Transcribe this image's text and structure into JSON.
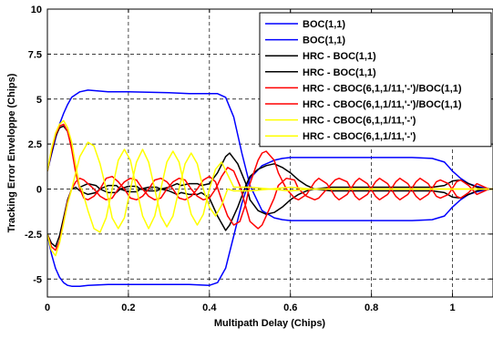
{
  "chart_data": {
    "type": "line",
    "title": "",
    "xlabel": "Multipath Delay (Chips)",
    "ylabel": "Tracking Error Enveloppe (Chips)",
    "xlim": [
      0,
      1.1
    ],
    "ylim": [
      -6,
      10
    ],
    "xticks": [
      0,
      0.2,
      0.4,
      0.6,
      0.8,
      1
    ],
    "xtick_labels": [
      "0",
      "0.2",
      "0.4",
      "0.6",
      "0.8",
      "1"
    ],
    "yticks": [
      -5,
      -2.5,
      0,
      2.5,
      5,
      7.5,
      10
    ],
    "ytick_labels": [
      "-5",
      "-2.5",
      "0",
      "2.5",
      "5",
      "7.5",
      "10"
    ],
    "grid": true,
    "legend_position": "top-right",
    "legend": [
      "BOC(1,1)",
      "BOC(1,1)",
      "HRC - BOC(1,1)",
      "HRC - BOC(1,1)",
      "HRC - CBOC(6,1,1/11,'-')/BOC(1,1)",
      "HRC - CBOC(6,1,1/11,'-')/BOC(1,1)",
      "HRC - CBOC(6,1,1/11,'-')",
      "HRC - CBOC(6,1,1/11,'-')"
    ],
    "series": [
      {
        "color": "#0000ff",
        "x": [
          0,
          0.01,
          0.02,
          0.03,
          0.04,
          0.05,
          0.06,
          0.08,
          0.1,
          0.15,
          0.2,
          0.3,
          0.35,
          0.4,
          0.42,
          0.44,
          0.46,
          0.48,
          0.5,
          0.53,
          0.56,
          0.58,
          0.6,
          0.65,
          0.7,
          0.8,
          0.9,
          0.95,
          0.98,
          1.0,
          1.02,
          1.04,
          1.06,
          1.08,
          1.1
        ],
        "y": [
          1.0,
          1.9,
          2.8,
          3.6,
          4.2,
          4.7,
          5.1,
          5.4,
          5.5,
          5.4,
          5.4,
          5.35,
          5.3,
          5.3,
          5.3,
          5.1,
          4.0,
          2.0,
          0.2,
          -1.2,
          -1.6,
          -1.7,
          -1.75,
          -1.75,
          -1.75,
          -1.75,
          -1.75,
          -1.7,
          -1.5,
          -1.0,
          -0.6,
          -0.3,
          -0.15,
          -0.05,
          0
        ]
      },
      {
        "color": "#0000ff",
        "x": [
          0,
          0.01,
          0.02,
          0.03,
          0.04,
          0.05,
          0.06,
          0.08,
          0.1,
          0.15,
          0.2,
          0.3,
          0.35,
          0.4,
          0.42,
          0.44,
          0.46,
          0.48,
          0.5,
          0.53,
          0.56,
          0.58,
          0.6,
          0.65,
          0.7,
          0.8,
          0.9,
          0.95,
          0.98,
          1.0,
          1.02,
          1.04,
          1.06,
          1.08,
          1.1
        ],
        "y": [
          -2.5,
          -3.6,
          -4.4,
          -4.9,
          -5.2,
          -5.35,
          -5.4,
          -5.4,
          -5.35,
          -5.3,
          -5.3,
          -5.3,
          -5.3,
          -5.35,
          -5.2,
          -4.4,
          -2.6,
          -0.8,
          0.6,
          1.3,
          1.6,
          1.7,
          1.75,
          1.75,
          1.75,
          1.75,
          1.75,
          1.7,
          1.5,
          1.0,
          0.6,
          0.3,
          0.15,
          0.05,
          0
        ]
      },
      {
        "color": "#000000",
        "x": [
          0,
          0.01,
          0.02,
          0.03,
          0.04,
          0.05,
          0.06,
          0.07,
          0.08,
          0.1,
          0.12,
          0.13,
          0.15,
          0.17,
          0.18,
          0.2,
          0.22,
          0.23,
          0.25,
          0.27,
          0.28,
          0.3,
          0.32,
          0.33,
          0.35,
          0.37,
          0.38,
          0.4,
          0.42,
          0.44,
          0.45,
          0.47,
          0.49,
          0.5,
          0.52,
          0.54,
          0.56,
          0.58,
          0.6,
          0.62,
          0.64,
          0.66,
          0.7,
          0.75,
          0.8,
          0.85,
          0.9,
          0.95,
          0.98,
          1.0,
          1.02,
          1.04,
          1.06,
          1.08,
          1.1
        ],
        "y": [
          1.0,
          2.0,
          2.9,
          3.4,
          3.5,
          3.2,
          2.3,
          1.0,
          0.1,
          0.3,
          0.2,
          0,
          0.2,
          0.2,
          0,
          0.15,
          0.15,
          0,
          0.1,
          0.1,
          0,
          0.1,
          0.3,
          0.2,
          0.3,
          0.3,
          0.2,
          0.3,
          0.9,
          1.8,
          2.0,
          1.4,
          0.3,
          -0.6,
          -1.2,
          -1.4,
          -1.3,
          -1.0,
          -0.6,
          -0.3,
          -0.1,
          0,
          0.1,
          0.1,
          0.1,
          0.1,
          0.1,
          0.1,
          0.2,
          0.45,
          0.5,
          0.3,
          0.1,
          0,
          0
        ]
      },
      {
        "color": "#000000",
        "x": [
          0,
          0.01,
          0.02,
          0.03,
          0.04,
          0.05,
          0.06,
          0.07,
          0.08,
          0.1,
          0.12,
          0.13,
          0.15,
          0.17,
          0.18,
          0.2,
          0.22,
          0.23,
          0.25,
          0.27,
          0.28,
          0.3,
          0.32,
          0.33,
          0.35,
          0.37,
          0.38,
          0.4,
          0.42,
          0.44,
          0.45,
          0.47,
          0.49,
          0.5,
          0.52,
          0.54,
          0.56,
          0.58,
          0.6,
          0.62,
          0.64,
          0.66,
          0.7,
          0.75,
          0.8,
          0.85,
          0.9,
          0.95,
          0.98,
          1.0,
          1.02,
          1.04,
          1.06,
          1.08,
          1.1
        ],
        "y": [
          -2.5,
          -3.0,
          -3.2,
          -2.6,
          -1.6,
          -0.6,
          0,
          0.1,
          -0.1,
          -0.3,
          -0.2,
          0,
          -0.2,
          -0.2,
          0,
          -0.15,
          -0.15,
          0,
          -0.1,
          -0.1,
          0,
          -0.1,
          -0.3,
          -0.2,
          -0.3,
          -0.3,
          -0.2,
          -0.5,
          -1.5,
          -2.3,
          -2.0,
          -1.0,
          0.2,
          0.7,
          1.1,
          1.3,
          1.4,
          1.2,
          0.9,
          0.5,
          0.2,
          0,
          -0.1,
          -0.1,
          -0.1,
          -0.1,
          -0.1,
          -0.1,
          -0.2,
          -0.45,
          -0.5,
          -0.3,
          -0.1,
          0,
          0
        ]
      },
      {
        "color": "#ff0000",
        "x": [
          0,
          0.01,
          0.02,
          0.03,
          0.04,
          0.05,
          0.06,
          0.07,
          0.08,
          0.09,
          0.1,
          0.115,
          0.13,
          0.145,
          0.16,
          0.175,
          0.19,
          0.205,
          0.22,
          0.235,
          0.25,
          0.265,
          0.28,
          0.295,
          0.31,
          0.325,
          0.34,
          0.355,
          0.37,
          0.385,
          0.4,
          0.415,
          0.43,
          0.445,
          0.46,
          0.475,
          0.49,
          0.5,
          0.52,
          0.53,
          0.54,
          0.56,
          0.57,
          0.59,
          0.61,
          0.62,
          0.64,
          0.66,
          0.67,
          0.69,
          0.71,
          0.72,
          0.74,
          0.76,
          0.77,
          0.79,
          0.81,
          0.82,
          0.84,
          0.86,
          0.87,
          0.89,
          0.91,
          0.92,
          0.94,
          0.96,
          0.97,
          0.99,
          1.01,
          1.02,
          1.04,
          1.06,
          1.07,
          1.09,
          1.1
        ],
        "y": [
          1.0,
          2.1,
          3.0,
          3.5,
          3.6,
          3.2,
          2.2,
          0.9,
          0,
          -0.5,
          -0.6,
          -0.4,
          0,
          0.6,
          0.7,
          0.4,
          0,
          -0.5,
          -0.6,
          -0.4,
          0,
          0.5,
          0.6,
          0.4,
          0,
          -0.5,
          -0.6,
          -0.4,
          0,
          0.5,
          0.7,
          0.4,
          -0.6,
          -1.5,
          -2.0,
          -1.8,
          -0.8,
          0.3,
          1.6,
          2.0,
          2.1,
          1.6,
          0.9,
          0,
          -0.5,
          -0.6,
          -0.3,
          0.4,
          0.6,
          0.3,
          -0.4,
          -0.6,
          -0.3,
          0.4,
          0.6,
          0.3,
          -0.4,
          -0.6,
          -0.3,
          0.4,
          0.6,
          0.3,
          -0.4,
          -0.6,
          -0.3,
          0.4,
          0.5,
          0.3,
          -0.4,
          -0.5,
          -0.2,
          0.3,
          0.2,
          0,
          0
        ]
      },
      {
        "color": "#ff0000",
        "x": [
          0,
          0.01,
          0.02,
          0.03,
          0.04,
          0.05,
          0.06,
          0.07,
          0.08,
          0.09,
          0.1,
          0.115,
          0.13,
          0.145,
          0.16,
          0.175,
          0.19,
          0.205,
          0.22,
          0.235,
          0.25,
          0.265,
          0.28,
          0.295,
          0.31,
          0.325,
          0.34,
          0.355,
          0.37,
          0.385,
          0.4,
          0.415,
          0.43,
          0.445,
          0.46,
          0.475,
          0.49,
          0.5,
          0.52,
          0.53,
          0.54,
          0.56,
          0.57,
          0.59,
          0.61,
          0.62,
          0.64,
          0.66,
          0.67,
          0.69,
          0.71,
          0.72,
          0.74,
          0.76,
          0.77,
          0.79,
          0.81,
          0.82,
          0.84,
          0.86,
          0.87,
          0.89,
          0.91,
          0.92,
          0.94,
          0.96,
          0.97,
          0.99,
          1.01,
          1.02,
          1.04,
          1.06,
          1.07,
          1.09,
          1.1
        ],
        "y": [
          -2.5,
          -3.2,
          -3.4,
          -2.9,
          -1.8,
          -0.7,
          0,
          0.4,
          0.6,
          0.5,
          0.3,
          0,
          -0.4,
          -0.6,
          -0.5,
          0,
          0.4,
          0.6,
          0.5,
          0,
          -0.4,
          -0.6,
          -0.5,
          0,
          0.4,
          0.6,
          0.5,
          0,
          -0.4,
          -0.6,
          -0.5,
          0,
          0.7,
          1.2,
          1.0,
          0.2,
          -1.0,
          -1.8,
          -2.2,
          -2.0,
          -1.5,
          -0.5,
          0.2,
          0.6,
          0.5,
          0,
          -0.4,
          -0.6,
          -0.5,
          0,
          0.5,
          0.6,
          0.4,
          -0.4,
          -0.6,
          -0.3,
          0.4,
          0.6,
          0.3,
          -0.4,
          -0.6,
          -0.3,
          0.4,
          0.6,
          0.3,
          -0.4,
          -0.5,
          -0.3,
          0.4,
          0.5,
          0.2,
          -0.3,
          -0.2,
          0,
          0
        ]
      },
      {
        "color": "#ffff00",
        "x": [
          0,
          0.01,
          0.02,
          0.03,
          0.04,
          0.05,
          0.06,
          0.07,
          0.08,
          0.085,
          0.1,
          0.115,
          0.13,
          0.145,
          0.16,
          0.175,
          0.19,
          0.205,
          0.22,
          0.235,
          0.25,
          0.265,
          0.28,
          0.295,
          0.31,
          0.325,
          0.34,
          0.355,
          0.37,
          0.385,
          0.4,
          0.415,
          0.43,
          0.445,
          0.46,
          0.5,
          0.55,
          0.6,
          0.65,
          0.7,
          0.75,
          0.8,
          0.85,
          0.9,
          0.95,
          1.0,
          1.05,
          1.1
        ],
        "y": [
          1.0,
          2.2,
          3.1,
          3.6,
          3.8,
          3.4,
          2.6,
          1.3,
          0.1,
          0,
          -1.2,
          -2.2,
          -2.4,
          -1.6,
          0,
          1.6,
          2.2,
          1.6,
          0,
          -1.5,
          -2.2,
          -1.5,
          0,
          1.5,
          2.1,
          1.5,
          0,
          -1.4,
          -2.0,
          -1.4,
          0,
          1.1,
          1.5,
          0.8,
          0.1,
          0.1,
          0,
          0.1,
          0,
          0,
          0,
          0,
          0,
          0,
          0,
          0,
          0,
          0
        ]
      },
      {
        "color": "#ffff00",
        "x": [
          0,
          0.01,
          0.02,
          0.03,
          0.04,
          0.05,
          0.06,
          0.07,
          0.08,
          0.085,
          0.1,
          0.115,
          0.13,
          0.145,
          0.16,
          0.175,
          0.19,
          0.205,
          0.22,
          0.235,
          0.25,
          0.265,
          0.28,
          0.295,
          0.31,
          0.325,
          0.34,
          0.355,
          0.37,
          0.385,
          0.4,
          0.415,
          0.43,
          0.445,
          0.46,
          0.5,
          0.55,
          0.6,
          0.65,
          0.7,
          0.75,
          0.8,
          0.85,
          0.9,
          0.95,
          1.0,
          1.05,
          1.1
        ],
        "y": [
          -2.5,
          -3.4,
          -3.7,
          -3.0,
          -1.9,
          -0.8,
          0,
          0.9,
          1.8,
          2.0,
          2.6,
          2.4,
          1.4,
          0,
          -1.6,
          -2.2,
          -1.6,
          0,
          1.5,
          2.2,
          1.5,
          0,
          -1.5,
          -2.1,
          -1.5,
          0,
          1.4,
          2.0,
          1.4,
          0,
          -1.0,
          -1.5,
          -0.9,
          0,
          -0.1,
          -0.1,
          0,
          -0.1,
          0,
          0,
          0,
          0,
          0,
          0,
          0,
          0,
          0,
          0
        ]
      }
    ]
  }
}
